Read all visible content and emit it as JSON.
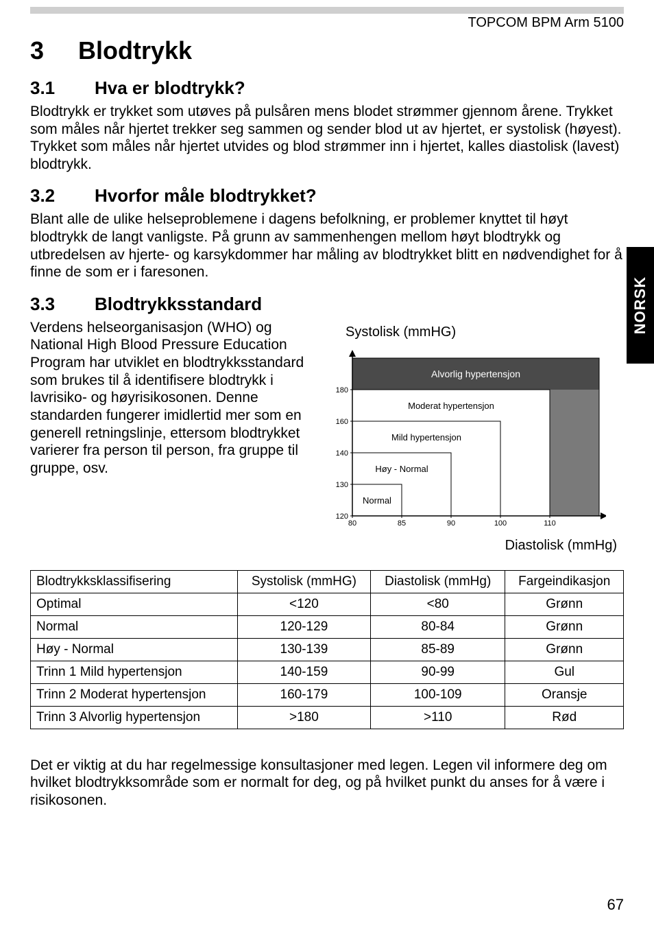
{
  "header": {
    "product": "TOPCOM BPM Arm 5100"
  },
  "side_tab": "NORSK",
  "section": {
    "number": "3",
    "title": "Blodtrykk",
    "s1": {
      "num": "3.1",
      "title": "Hva er blodtrykk?",
      "body": "Blodtrykk er trykket som utøves på pulsåren mens blodet strømmer gjennom årene. Trykket som måles når hjertet trekker seg sammen og sender blod ut av hjertet, er systolisk (høyest). Trykket som måles når hjertet utvides og blod strømmer inn i hjertet, kalles diastolisk (lavest) blodtrykk."
    },
    "s2": {
      "num": "3.2",
      "title": "Hvorfor måle blodtrykket?",
      "body": "Blant alle de ulike helseproblemene i dagens befolkning, er problemer knyttet til høyt blodtrykk de langt vanligste. På grunn av sammenhengen mellom høyt blodtrykk og utbredelsen av hjerte- og karsykdommer har måling av blodtrykket blitt en nødvendighet for å finne de som er i faresonen."
    },
    "s3": {
      "num": "3.3",
      "title": "Blodtrykksstandard",
      "body": "Verdens helseorganisasjon (WHO) og National High Blood Pressure Education Program har utviklet en blodtrykksstandard som brukes til å identifisere blodtrykk i lavrisiko- og høyrisikosonen.  Denne standarden fungerer imidlertid mer som en generell retningslinje, ettersom blodtrykket varierer fra person til person, fra gruppe til gruppe, osv."
    }
  },
  "chart": {
    "type": "step-area",
    "y_label": "Systolisk (mmHG)",
    "x_label": "Diastolisk (mmHg)",
    "background_color": "#ffffff",
    "axis_color": "#000000",
    "fill_color": "#7a7a7a",
    "fill_color_dark": "#4a4a4a",
    "zone_label_color_dark": "#ffffff",
    "zone_label_color_light": "#000000",
    "axis_fontsize": 11,
    "zone_fontsize": 13,
    "y_ticks": [
      120,
      130,
      140,
      160,
      180
    ],
    "x_ticks": [
      80,
      85,
      90,
      100,
      110
    ],
    "zones": [
      {
        "label": "Alvorlig hypertensjon",
        "sys_min": 180,
        "dia_min": 110,
        "label_on_dark": true
      },
      {
        "label": "Moderat hypertensjon",
        "sys_min": 160,
        "dia_min": 100,
        "label_on_dark": false
      },
      {
        "label": "Mild hypertensjon",
        "sys_min": 140,
        "dia_min": 90,
        "label_on_dark": false
      },
      {
        "label": "Høy - Normal",
        "sys_min": 130,
        "dia_min": 85,
        "label_on_dark": false
      },
      {
        "label": "Normal",
        "sys_min": 120,
        "dia_min": 80,
        "label_on_dark": false
      }
    ]
  },
  "table": {
    "headers": {
      "cls": "Blodtrykksklassifisering",
      "sys": "Systolisk (mmHG)",
      "dia": "Diastolisk (mmHg)",
      "color": "Fargeindikasjon"
    },
    "col_align": [
      "left",
      "center",
      "center",
      "center"
    ],
    "rows": [
      {
        "cls": "Optimal",
        "sys": "<120",
        "dia": "<80",
        "color": "Grønn"
      },
      {
        "cls": "Normal",
        "sys": "120-129",
        "dia": "80-84",
        "color": "Grønn"
      },
      {
        "cls": "Høy - Normal",
        "sys": "130-139",
        "dia": "85-89",
        "color": "Grønn"
      },
      {
        "cls": "Trinn 1 Mild hypertensjon",
        "sys": "140-159",
        "dia": "90-99",
        "color": "Gul"
      },
      {
        "cls": "Trinn 2 Moderat hypertensjon",
        "sys": "160-179",
        "dia": "100-109",
        "color": "Oransje"
      },
      {
        "cls": "Trinn 3 Alvorlig hypertensjon",
        "sys": ">180",
        "dia": ">110",
        "color": "Rød"
      }
    ]
  },
  "footer_paragraph": "Det er viktig at du har regelmessige konsultasjoner med legen.  Legen vil informere deg om hvilket blodtrykksområde som er normalt for deg, og på hvilket punkt du anses for å være i risikosonen.",
  "page_number": "67"
}
